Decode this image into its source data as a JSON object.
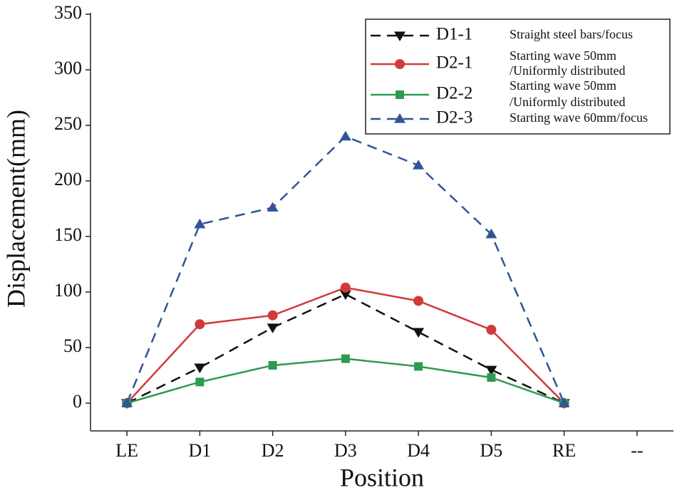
{
  "chart_data": {
    "type": "line",
    "x_label": "Position",
    "y_label": "Displacement(mm)",
    "categories": [
      "LE",
      "D1",
      "D2",
      "D3",
      "D4",
      "D5",
      "RE",
      "--"
    ],
    "ylim": [
      -25,
      350
    ],
    "yticks": [
      0,
      50,
      100,
      150,
      200,
      250,
      300,
      350
    ],
    "series": [
      {
        "name": "D1-1",
        "description": [
          "Straight steel bars/focus"
        ],
        "color": "#111111",
        "marker": "triangle-down",
        "dash": true,
        "values": [
          0,
          32,
          68,
          98,
          64,
          30,
          0,
          null
        ]
      },
      {
        "name": "D2-1",
        "description": [
          "Starting wave 50mm",
          "/Uniformly distributed"
        ],
        "color": "#d23a3a",
        "marker": "circle",
        "dash": false,
        "values": [
          0,
          71,
          79,
          104,
          92,
          66,
          0,
          null
        ]
      },
      {
        "name": "D2-2",
        "description": [
          "Starting wave 50mm",
          "/Uniformly distributed"
        ],
        "color": "#2e9a52",
        "marker": "square",
        "dash": false,
        "values": [
          0,
          19,
          34,
          40,
          33,
          23,
          0,
          null
        ]
      },
      {
        "name": "D2-3",
        "description": [
          "Starting wave 60mm/focus"
        ],
        "color": "#2f5597",
        "marker": "triangle-up",
        "dash": true,
        "values": [
          0,
          161,
          176,
          240,
          214,
          152,
          0,
          null
        ]
      }
    ]
  }
}
